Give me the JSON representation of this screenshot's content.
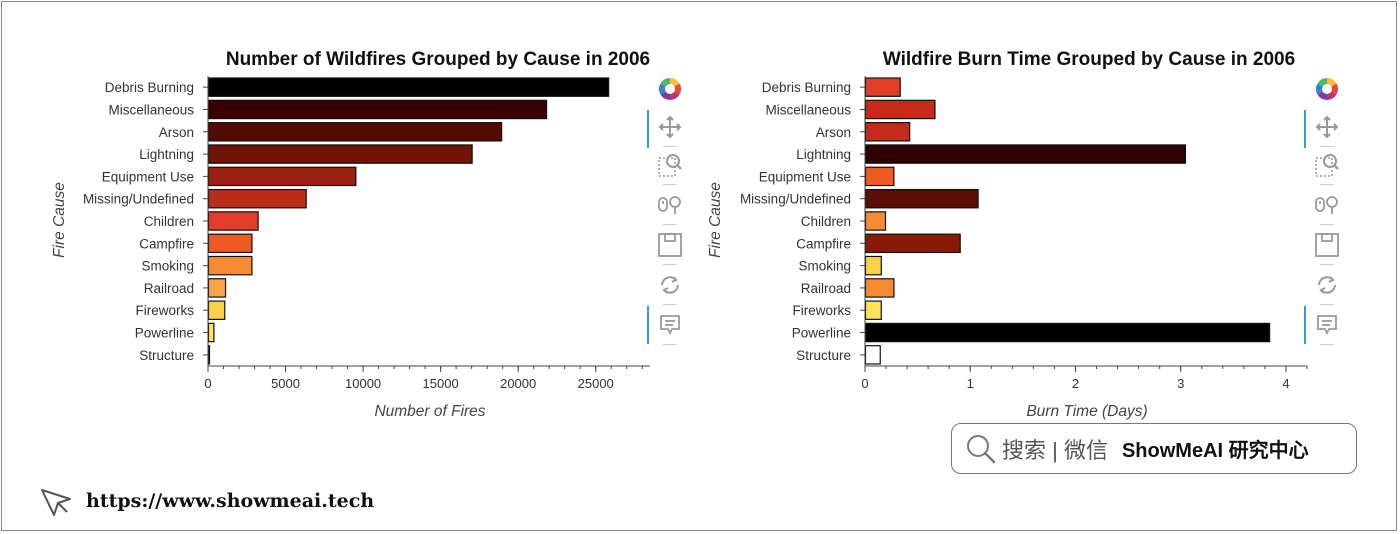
{
  "chart_data": [
    {
      "type": "bar",
      "orientation": "horizontal",
      "title": "Number of Wildfires Grouped by Cause in 2006",
      "xlabel": "Number of Fires",
      "ylabel": "Fire Cause",
      "categories": [
        "Debris Burning",
        "Miscellaneous",
        "Arson",
        "Lightning",
        "Equipment Use",
        "Missing/Undefined",
        "Children",
        "Campfire",
        "Smoking",
        "Railroad",
        "Fireworks",
        "Powerline",
        "Structure"
      ],
      "values": [
        25800,
        21800,
        18900,
        17000,
        9500,
        6300,
        3200,
        2800,
        2800,
        1100,
        1050,
        350,
        60
      ],
      "colors": [
        "#000000",
        "#3a0000",
        "#520c04",
        "#701505",
        "#9a2010",
        "#b92e1a",
        "#e23d26",
        "#ed5b22",
        "#f68b33",
        "#fba34a",
        "#fdd147",
        "#fee35a",
        "#ffffff"
      ],
      "xlim": [
        0,
        28500
      ],
      "xticks": [
        0,
        5000,
        10000,
        15000,
        20000,
        25000
      ],
      "xtick_labels": [
        "0",
        "5000",
        "10000",
        "15000",
        "20000",
        "25000"
      ],
      "grid": false,
      "legend": "none"
    },
    {
      "type": "bar",
      "orientation": "horizontal",
      "title": "Wildfire Burn Time Grouped by Cause in 2006",
      "xlabel": "Burn Time (Days)",
      "ylabel": "Fire Cause",
      "categories": [
        "Debris Burning",
        "Miscellaneous",
        "Arson",
        "Lightning",
        "Equipment Use",
        "Missing/Undefined",
        "Children",
        "Campfire",
        "Smoking",
        "Railroad",
        "Fireworks",
        "Powerline",
        "Structure"
      ],
      "values": [
        0.33,
        0.66,
        0.42,
        3.04,
        0.27,
        1.07,
        0.19,
        0.9,
        0.15,
        0.27,
        0.15,
        3.84,
        0.14
      ],
      "colors": [
        "#e23d26",
        "#c52b18",
        "#c52b18",
        "#2e0000",
        "#ed5b22",
        "#5a0e05",
        "#f68b33",
        "#8a1a08",
        "#fdd147",
        "#f68b33",
        "#fee35a",
        "#000000",
        "#ffffff"
      ],
      "xlim": [
        0,
        4.2
      ],
      "xticks": [
        0,
        1,
        2,
        3,
        4
      ],
      "xtick_labels": [
        "0",
        "1",
        "2",
        "3",
        "4"
      ],
      "grid": false,
      "legend": "none"
    }
  ],
  "toolbar_icons": [
    "bokeh-logo-icon",
    "pan-icon",
    "box-zoom-icon",
    "wheel-zoom-icon",
    "save-icon",
    "reset-icon",
    "hover-icon"
  ],
  "watermark": {
    "search_text": "搜索 | 微信",
    "brand": "ShowMeAI 研究中心"
  },
  "footer": {
    "url": "https://www.showmeai.tech"
  }
}
